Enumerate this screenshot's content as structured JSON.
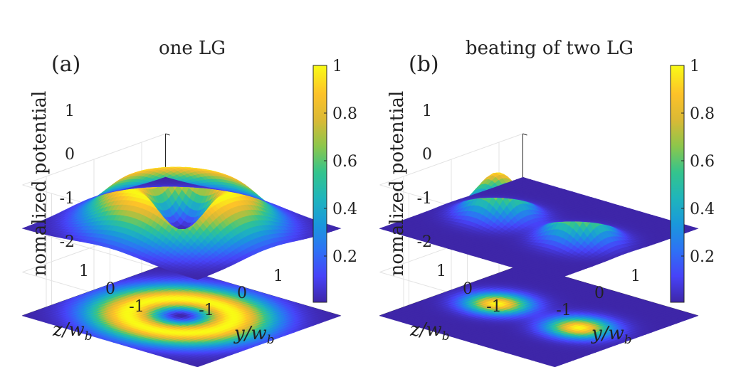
{
  "chart_data": [
    {
      "type": "surface",
      "panel_label": "(a)",
      "title": "one LG",
      "zlabel": "nomalized potential",
      "xlabel": "z/w",
      "xlabel_sub": "b",
      "ylabel": "y/w",
      "ylabel_sub": "b",
      "zticks": [
        "1",
        "0",
        "-1",
        "-2"
      ],
      "xticks": [
        "1",
        "0",
        "-1"
      ],
      "yticks": [
        "-1",
        "0",
        "1"
      ],
      "zlim": [
        -2,
        1
      ],
      "xlim": [
        -1.5,
        1.5
      ],
      "ylim": [
        -1.5,
        1.5
      ],
      "surface": "single Laguerre-Gaussian donut: ring of radius 0.7 w_b, peak 1",
      "projection": "contour map at z = -2",
      "colorbar": {
        "ticks": [
          "1",
          "0.8",
          "0.6",
          "0.4",
          "0.2"
        ],
        "range": [
          0,
          1
        ]
      }
    },
    {
      "type": "surface",
      "panel_label": "(b)",
      "title": "beating of two LG",
      "zlabel": "nomalized potential",
      "xlabel": "z/w",
      "xlabel_sub": "b",
      "ylabel": "y/w",
      "ylabel_sub": "b",
      "zticks": [
        "1",
        "0",
        "-1",
        "-2"
      ],
      "xticks": [
        "1",
        "0",
        "-1"
      ],
      "yticks": [
        "-1",
        "0",
        "1"
      ],
      "zlim": [
        -2,
        1
      ],
      "xlim": [
        -1.5,
        1.5
      ],
      "ylim": [
        -1.5,
        1.5
      ],
      "surface": "two Gaussian lobes at y = ±0.7 w_b, peak 1",
      "projection": "contour map at z = -2",
      "colorbar": {
        "ticks": [
          "1",
          "0.8",
          "0.6",
          "0.4",
          "0.2"
        ],
        "range": [
          0,
          1
        ]
      }
    }
  ],
  "colormap": [
    "#3e26a8",
    "#4743f8",
    "#2d72f5",
    "#1a98db",
    "#1fb5bb",
    "#34c48c",
    "#8dc64b",
    "#dab935",
    "#fdc229",
    "#f9fb15"
  ]
}
